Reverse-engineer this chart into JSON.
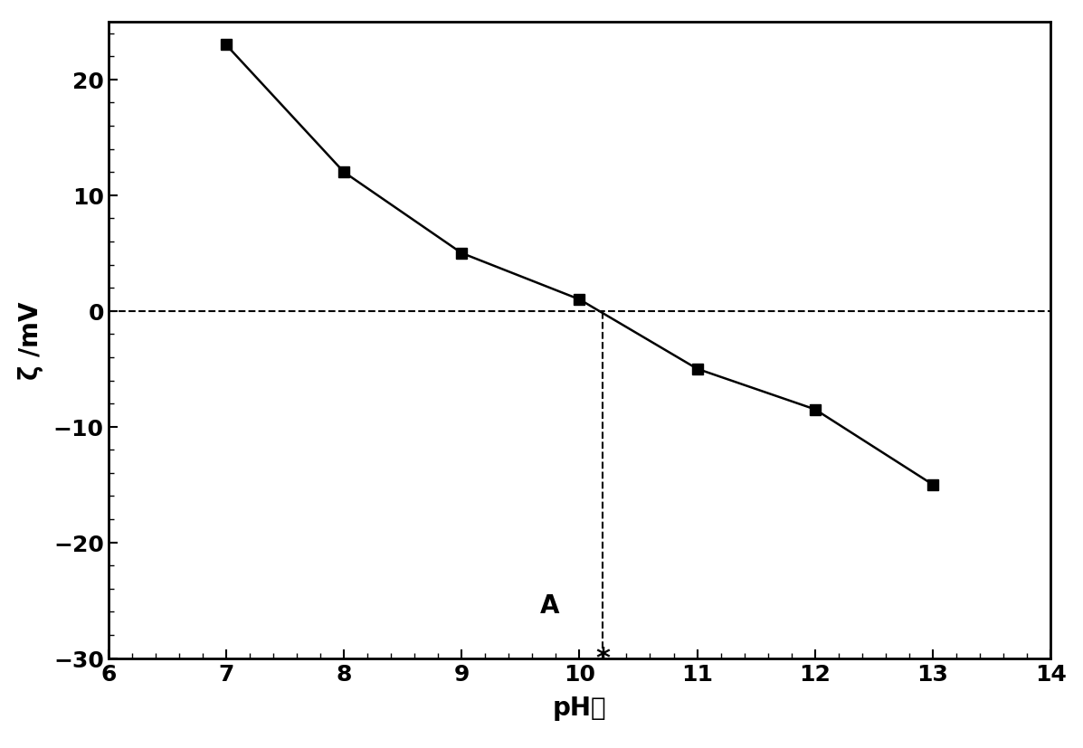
{
  "x": [
    7,
    8,
    9,
    10,
    11,
    12,
    13
  ],
  "y": [
    23,
    12,
    5,
    1,
    -5,
    -8.5,
    -15
  ],
  "xlim": [
    6,
    14
  ],
  "ylim": [
    -30,
    25
  ],
  "xticks": [
    6,
    7,
    8,
    9,
    10,
    11,
    12,
    13,
    14
  ],
  "yticks": [
    -30,
    -20,
    -10,
    0,
    10,
    20
  ],
  "xlabel": "pH值",
  "ylabel": "ζ /mV",
  "iep_x": 10.2,
  "iep_label": "A",
  "line_color": "#000000",
  "marker_color": "#000000",
  "marker": "s",
  "marker_size": 9,
  "dashed_line_color": "#000000",
  "background_color": "#ffffff",
  "xlabel_fontsize": 20,
  "ylabel_fontsize": 20,
  "tick_fontsize": 18,
  "label_fontweight": "bold",
  "asterisk_fontsize": 22
}
